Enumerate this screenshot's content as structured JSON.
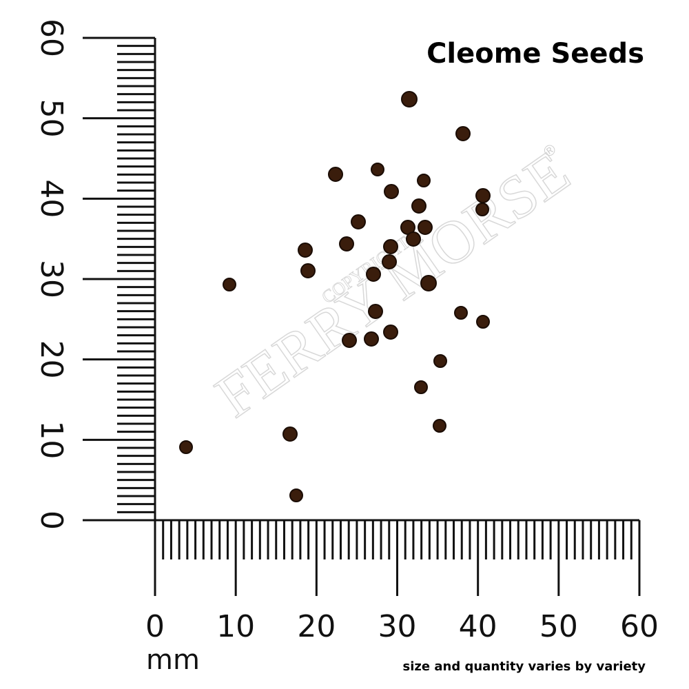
{
  "title": "Cleome Seeds",
  "watermark": {
    "copyright": "COPYRIGHT",
    "brand": "FERRY MORSE",
    "mark": "®"
  },
  "ruler": {
    "vertical_labels": [
      "0",
      "10",
      "20",
      "30",
      "40",
      "50",
      "60"
    ],
    "horizontal_labels": [
      "0",
      "10",
      "20",
      "30",
      "40",
      "50",
      "60"
    ],
    "unit": "mm"
  },
  "footnote": "size and quantity varies by variety"
}
